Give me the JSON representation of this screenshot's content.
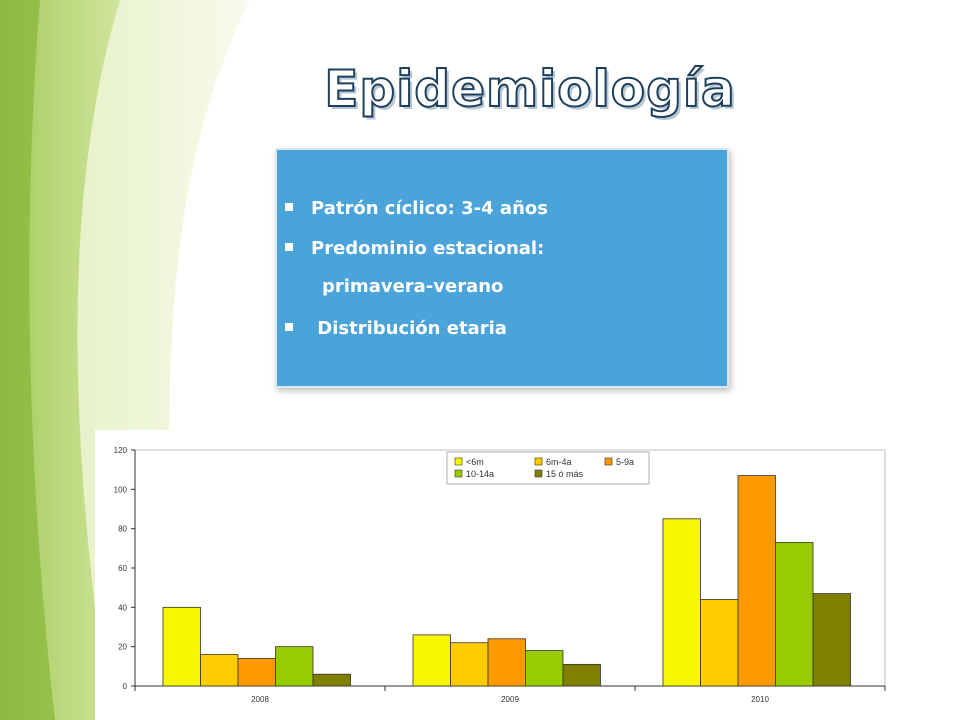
{
  "slide": {
    "title": "Epidemiología",
    "bullets": [
      {
        "text": "Patrón cíclico: 3-4 años"
      },
      {
        "text": "Predominio estacional:"
      },
      {
        "text": "primavera-verano",
        "continuation": true
      },
      {
        "text": " Distribución etaria"
      }
    ]
  },
  "colors": {
    "bullet_box": "#4aa3d9",
    "swoosh_light": "#eef5d8",
    "swoosh_green": "#9dc64a"
  },
  "chart_data": {
    "type": "bar",
    "categories": [
      "2008",
      "2009",
      "2010"
    ],
    "series": [
      {
        "name": "<6m",
        "color": "#f7f700",
        "values": [
          40,
          26,
          85
        ]
      },
      {
        "name": "6m-4a",
        "color": "#ffcc00",
        "values": [
          16,
          22,
          44
        ]
      },
      {
        "name": "5-9a",
        "color": "#ff9900",
        "values": [
          14,
          24,
          107
        ]
      },
      {
        "name": "10-14a",
        "color": "#99cc00",
        "values": [
          20,
          18,
          73
        ]
      },
      {
        "name": "15 ó más",
        "color": "#808000",
        "values": [
          6,
          11,
          47
        ]
      }
    ],
    "ylim": [
      0,
      120
    ],
    "yticks": [
      0,
      20,
      40,
      60,
      80,
      100,
      120
    ],
    "grid": false,
    "legend_position": "top-right"
  }
}
